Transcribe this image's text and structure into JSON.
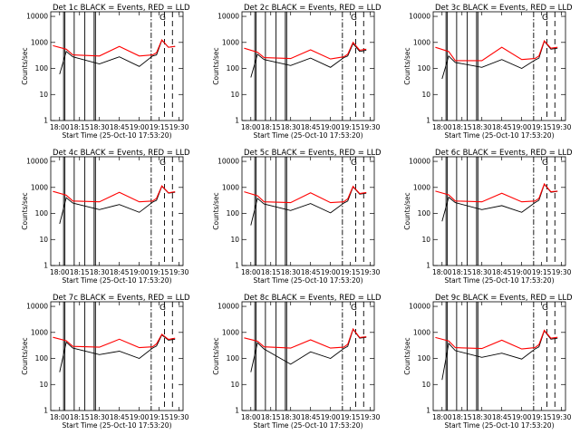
{
  "chart_data": [
    {
      "type": "line",
      "title": "Det 1c BLACK = Events, RED = LLD",
      "xlabel": "Start Time (25-Oct-10 17:53:20)",
      "ylabel": "Counts/sec",
      "yscale": "log",
      "ylim": [
        1,
        15000
      ],
      "x_tick_labels": [
        "18:00",
        "18:15",
        "18:30",
        "18:45",
        "19:00",
        "19:15",
        "19:30"
      ],
      "y_tick_labels": [
        "1",
        "10",
        "100",
        "1000",
        "10000"
      ],
      "marker_label": "G",
      "series": [
        {
          "name": "Events",
          "color": "#000000",
          "time": [
            "18:00",
            "18:05",
            "18:10",
            "18:30",
            "18:45",
            "19:00",
            "19:10",
            "19:13",
            "19:17",
            "19:22",
            "19:27"
          ],
          "values": [
            60,
            450,
            280,
            150,
            280,
            120,
            300,
            330,
            1200,
            650,
            700
          ]
        },
        {
          "name": "LLD",
          "color": "#ff0000",
          "time": [
            "17:55",
            "18:05",
            "18:10",
            "18:30",
            "18:45",
            "19:00",
            "19:10",
            "19:13",
            "19:17",
            "19:22",
            "19:27"
          ],
          "values": [
            750,
            550,
            330,
            300,
            700,
            300,
            330,
            400,
            1250,
            650,
            700
          ]
        }
      ]
    },
    {
      "type": "line",
      "title": "Det 2c BLACK = Events, RED = LLD",
      "xlabel": "Start Time (25-Oct-10 17:53:20)",
      "ylabel": "Counts/sec",
      "yscale": "log",
      "ylim": [
        1,
        15000
      ],
      "x_tick_labels": [
        "18:00",
        "18:15",
        "18:30",
        "18:45",
        "19:00",
        "19:15",
        "19:30"
      ],
      "y_tick_labels": [
        "1",
        "10",
        "100",
        "1000",
        "10000"
      ],
      "marker_label": "G",
      "series": [
        {
          "name": "Events",
          "color": "#000000",
          "time": [
            "18:00",
            "18:05",
            "18:10",
            "18:30",
            "18:45",
            "19:00",
            "19:10",
            "19:13",
            "19:17",
            "19:22",
            "19:27"
          ],
          "values": [
            45,
            350,
            220,
            130,
            250,
            110,
            260,
            300,
            900,
            450,
            500
          ]
        },
        {
          "name": "LLD",
          "color": "#ff0000",
          "time": [
            "17:55",
            "18:05",
            "18:10",
            "18:30",
            "18:45",
            "19:00",
            "19:10",
            "19:13",
            "19:17",
            "19:22",
            "19:27"
          ],
          "values": [
            600,
            420,
            260,
            240,
            520,
            230,
            280,
            350,
            1000,
            500,
            550
          ]
        }
      ]
    },
    {
      "type": "line",
      "title": "Det 3c BLACK = Events, RED = LLD",
      "xlabel": "Start Time (25-Oct-10 17:53:20)",
      "ylabel": "Counts/sec",
      "yscale": "log",
      "ylim": [
        1,
        15000
      ],
      "x_tick_labels": [
        "18:00",
        "18:15",
        "18:30",
        "18:45",
        "19:00",
        "19:15",
        "19:30"
      ],
      "y_tick_labels": [
        "1",
        "10",
        "100",
        "1000",
        "10000"
      ],
      "marker_label": "G",
      "series": [
        {
          "name": "Events",
          "color": "#000000",
          "time": [
            "18:00",
            "18:05",
            "18:10",
            "18:30",
            "18:45",
            "19:00",
            "19:10",
            "19:13",
            "19:17",
            "19:22",
            "19:27"
          ],
          "values": [
            40,
            300,
            170,
            110,
            220,
            100,
            210,
            250,
            1100,
            550,
            600
          ]
        },
        {
          "name": "LLD",
          "color": "#ff0000",
          "time": [
            "17:55",
            "18:05",
            "18:10",
            "18:30",
            "18:45",
            "19:00",
            "19:10",
            "19:13",
            "19:17",
            "19:22",
            "19:27"
          ],
          "values": [
            650,
            450,
            200,
            200,
            650,
            220,
            240,
            300,
            1150,
            600,
            650
          ]
        }
      ]
    },
    {
      "type": "line",
      "title": "Det 4c BLACK = Events, RED = LLD",
      "xlabel": "Start Time (25-Oct-10 17:53:20)",
      "ylabel": "Counts/sec",
      "yscale": "log",
      "ylim": [
        1,
        15000
      ],
      "x_tick_labels": [
        "18:00",
        "18:15",
        "18:30",
        "18:45",
        "19:00",
        "19:15",
        "19:30"
      ],
      "y_tick_labels": [
        "1",
        "10",
        "100",
        "1000",
        "10000"
      ],
      "marker_label": "G",
      "series": [
        {
          "name": "Events",
          "color": "#000000",
          "time": [
            "18:00",
            "18:05",
            "18:10",
            "18:30",
            "18:45",
            "19:00",
            "19:10",
            "19:13",
            "19:17",
            "19:22",
            "19:27"
          ],
          "values": [
            40,
            400,
            250,
            140,
            220,
            110,
            270,
            320,
            1100,
            600,
            650
          ]
        },
        {
          "name": "LLD",
          "color": "#ff0000",
          "time": [
            "17:55",
            "18:05",
            "18:10",
            "18:30",
            "18:45",
            "19:00",
            "19:10",
            "19:13",
            "19:17",
            "19:22",
            "19:27"
          ],
          "values": [
            700,
            500,
            300,
            280,
            650,
            280,
            300,
            380,
            1150,
            620,
            680
          ]
        }
      ]
    },
    {
      "type": "line",
      "title": "Det 5c BLACK = Events, RED = LLD",
      "xlabel": "Start Time (25-Oct-10 17:53:20)",
      "ylabel": "Counts/sec",
      "yscale": "log",
      "ylim": [
        1,
        15000
      ],
      "x_tick_labels": [
        "18:00",
        "18:15",
        "18:30",
        "18:45",
        "19:00",
        "19:15",
        "19:30"
      ],
      "y_tick_labels": [
        "1",
        "10",
        "100",
        "1000",
        "10000"
      ],
      "marker_label": "G",
      "series": [
        {
          "name": "Events",
          "color": "#000000",
          "time": [
            "18:00",
            "18:05",
            "18:10",
            "18:30",
            "18:45",
            "19:00",
            "19:10",
            "19:13",
            "19:17",
            "19:22",
            "19:27"
          ],
          "values": [
            35,
            380,
            230,
            130,
            240,
            105,
            250,
            300,
            1050,
            550,
            600
          ]
        },
        {
          "name": "LLD",
          "color": "#ff0000",
          "time": [
            "17:55",
            "18:05",
            "18:10",
            "18:30",
            "18:45",
            "19:00",
            "19:10",
            "19:13",
            "19:17",
            "19:22",
            "19:27"
          ],
          "values": [
            680,
            480,
            280,
            260,
            620,
            260,
            280,
            360,
            1100,
            580,
            640
          ]
        }
      ]
    },
    {
      "type": "line",
      "title": "Det 6c BLACK = Events, RED = LLD",
      "xlabel": "Start Time (25-Oct-10 17:53:20)",
      "ylabel": "Counts/sec",
      "yscale": "log",
      "ylim": [
        1,
        15000
      ],
      "x_tick_labels": [
        "18:00",
        "18:15",
        "18:30",
        "18:45",
        "19:00",
        "19:15",
        "19:30"
      ],
      "y_tick_labels": [
        "1",
        "10",
        "100",
        "1000",
        "10000"
      ],
      "marker_label": "G",
      "series": [
        {
          "name": "Events",
          "color": "#000000",
          "time": [
            "18:00",
            "18:05",
            "18:10",
            "18:30",
            "18:45",
            "19:00",
            "19:10",
            "19:13",
            "19:17",
            "19:22",
            "19:27"
          ],
          "values": [
            50,
            420,
            260,
            140,
            200,
            110,
            260,
            320,
            1300,
            650,
            700
          ]
        },
        {
          "name": "LLD",
          "color": "#ff0000",
          "time": [
            "17:55",
            "18:05",
            "18:10",
            "18:30",
            "18:45",
            "19:00",
            "19:10",
            "19:13",
            "19:17",
            "19:22",
            "19:27"
          ],
          "values": [
            720,
            520,
            300,
            280,
            600,
            280,
            300,
            380,
            1350,
            680,
            720
          ]
        }
      ]
    },
    {
      "type": "line",
      "title": "Det 7c BLACK = Events, RED = LLD",
      "xlabel": "Start Time (25-Oct-10 17:53:20)",
      "ylabel": "Counts/sec",
      "yscale": "log",
      "ylim": [
        1,
        15000
      ],
      "x_tick_labels": [
        "18:00",
        "18:15",
        "18:30",
        "18:45",
        "19:00",
        "19:15",
        "19:30"
      ],
      "y_tick_labels": [
        "1",
        "10",
        "100",
        "1000",
        "10000"
      ],
      "marker_label": "G",
      "series": [
        {
          "name": "Events",
          "color": "#000000",
          "time": [
            "18:00",
            "18:05",
            "18:10",
            "18:30",
            "18:45",
            "19:00",
            "19:10",
            "19:13",
            "19:17",
            "19:22",
            "19:27"
          ],
          "values": [
            30,
            420,
            250,
            140,
            190,
            100,
            250,
            300,
            800,
            500,
            550
          ]
        },
        {
          "name": "LLD",
          "color": "#ff0000",
          "time": [
            "17:55",
            "18:05",
            "18:10",
            "18:30",
            "18:45",
            "19:00",
            "19:10",
            "19:13",
            "19:17",
            "19:22",
            "19:27"
          ],
          "values": [
            650,
            480,
            290,
            270,
            550,
            260,
            280,
            360,
            850,
            540,
            600
          ]
        }
      ]
    },
    {
      "type": "line",
      "title": "Det 8c BLACK = Events, RED = LLD",
      "xlabel": "Start Time (25-Oct-10 17:53:20)",
      "ylabel": "Counts/sec",
      "yscale": "log",
      "ylim": [
        1,
        15000
      ],
      "x_tick_labels": [
        "18:00",
        "18:15",
        "18:30",
        "18:45",
        "19:00",
        "19:15",
        "19:30"
      ],
      "y_tick_labels": [
        "1",
        "10",
        "100",
        "1000",
        "10000"
      ],
      "marker_label": "G",
      "series": [
        {
          "name": "Events",
          "color": "#000000",
          "time": [
            "18:00",
            "18:05",
            "18:10",
            "18:30",
            "18:45",
            "19:00",
            "19:10",
            "19:13",
            "19:17",
            "19:22",
            "19:27"
          ],
          "values": [
            30,
            400,
            230,
            60,
            180,
            100,
            240,
            290,
            1300,
            600,
            650
          ]
        },
        {
          "name": "LLD",
          "color": "#ff0000",
          "time": [
            "17:55",
            "18:05",
            "18:10",
            "18:30",
            "18:45",
            "19:00",
            "19:10",
            "19:13",
            "19:17",
            "19:22",
            "19:27"
          ],
          "values": [
            620,
            460,
            280,
            250,
            520,
            250,
            270,
            350,
            1350,
            640,
            680
          ]
        }
      ]
    },
    {
      "type": "line",
      "title": "Det 9c BLACK = Events, RED = LLD",
      "xlabel": "Start Time (25-Oct-10 17:53:20)",
      "ylabel": "Counts/sec",
      "yscale": "log",
      "ylim": [
        1,
        15000
      ],
      "x_tick_labels": [
        "18:00",
        "18:15",
        "18:30",
        "18:45",
        "19:00",
        "19:15",
        "19:30"
      ],
      "y_tick_labels": [
        "1",
        "10",
        "100",
        "1000",
        "10000"
      ],
      "marker_label": "G",
      "series": [
        {
          "name": "Events",
          "color": "#000000",
          "time": [
            "18:00",
            "18:05",
            "18:10",
            "18:30",
            "18:45",
            "19:00",
            "19:10",
            "19:13",
            "19:17",
            "19:22",
            "19:27"
          ],
          "values": [
            15,
            380,
            200,
            110,
            160,
            95,
            230,
            280,
            1150,
            550,
            600
          ]
        },
        {
          "name": "LLD",
          "color": "#ff0000",
          "time": [
            "17:55",
            "18:05",
            "18:10",
            "18:30",
            "18:45",
            "19:00",
            "19:10",
            "19:13",
            "19:17",
            "19:22",
            "19:27"
          ],
          "values": [
            640,
            470,
            260,
            240,
            500,
            230,
            260,
            340,
            1200,
            600,
            650
          ]
        }
      ]
    }
  ]
}
